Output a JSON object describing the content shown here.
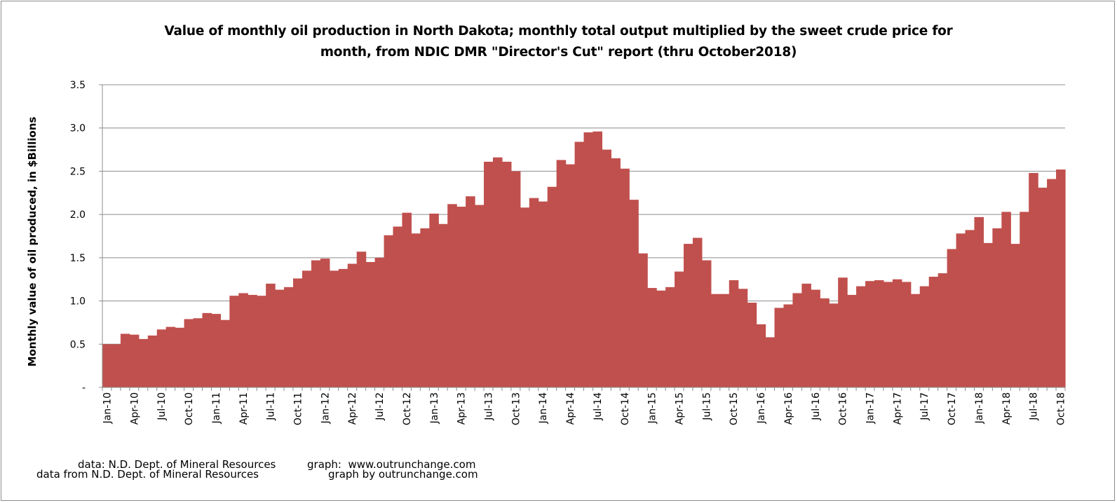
{
  "chart_data": {
    "type": "bar",
    "title_lines": [
      "Value of monthly oil production in North Dakota; monthly total output multiplied by the sweet crude price for",
      "month, from NDIC DMR \"Director's Cut\" report  (thru October2018)"
    ],
    "xlabel": "",
    "ylabel": "Monthly value of oil produced, in $Billions",
    "ylim": [
      0,
      3.5
    ],
    "yticks": [
      "-",
      "0.5",
      "1.0",
      "1.5",
      "2.0",
      "2.5",
      "3.0",
      "3.5"
    ],
    "grid": true,
    "bar_color": "#c0504d",
    "x_tick_labels": [
      "Jan-10",
      "Apr-10",
      "Jul-10",
      "Oct-10",
      "Jan-11",
      "Apr-11",
      "Jul-11",
      "Oct-11",
      "Jan-12",
      "Apr-12",
      "Jul-12",
      "Oct-12",
      "Jan-13",
      "Apr-13",
      "Jul-13",
      "Oct-13",
      "Jan-14",
      "Apr-14",
      "Jul-14",
      "Oct-14",
      "Jan-15",
      "Apr-15",
      "Jul-15",
      "Oct-15",
      "Jan-16",
      "Apr-16",
      "Jul-16",
      "Oct-16",
      "Jan-17",
      "Apr-17",
      "Jul-17",
      "Oct-17",
      "Jan-18",
      "Apr-18",
      "Jul-18",
      "Oct-18"
    ],
    "categories": [
      "Jan-10",
      "Feb-10",
      "Mar-10",
      "Apr-10",
      "May-10",
      "Jun-10",
      "Jul-10",
      "Aug-10",
      "Sep-10",
      "Oct-10",
      "Nov-10",
      "Dec-10",
      "Jan-11",
      "Feb-11",
      "Mar-11",
      "Apr-11",
      "May-11",
      "Jun-11",
      "Jul-11",
      "Aug-11",
      "Sep-11",
      "Oct-11",
      "Nov-11",
      "Dec-11",
      "Jan-12",
      "Feb-12",
      "Mar-12",
      "Apr-12",
      "May-12",
      "Jun-12",
      "Jul-12",
      "Aug-12",
      "Sep-12",
      "Oct-12",
      "Nov-12",
      "Dec-12",
      "Jan-13",
      "Feb-13",
      "Mar-13",
      "Apr-13",
      "May-13",
      "Jun-13",
      "Jul-13",
      "Aug-13",
      "Sep-13",
      "Oct-13",
      "Nov-13",
      "Dec-13",
      "Jan-14",
      "Feb-14",
      "Mar-14",
      "Apr-14",
      "May-14",
      "Jun-14",
      "Jul-14",
      "Aug-14",
      "Sep-14",
      "Oct-14",
      "Nov-14",
      "Dec-14",
      "Jan-15",
      "Feb-15",
      "Mar-15",
      "Apr-15",
      "May-15",
      "Jun-15",
      "Jul-15",
      "Aug-15",
      "Sep-15",
      "Oct-15",
      "Nov-15",
      "Dec-15",
      "Jan-16",
      "Feb-16",
      "Mar-16",
      "Apr-16",
      "May-16",
      "Jun-16",
      "Jul-16",
      "Aug-16",
      "Sep-16",
      "Oct-16",
      "Nov-16",
      "Dec-16",
      "Jan-17",
      "Feb-17",
      "Mar-17",
      "Apr-17",
      "May-17",
      "Jun-17",
      "Jul-17",
      "Aug-17",
      "Sep-17",
      "Oct-17",
      "Nov-17",
      "Dec-17",
      "Jan-18",
      "Feb-18",
      "Mar-18",
      "Apr-18",
      "May-18",
      "Jun-18",
      "Jul-18",
      "Aug-18",
      "Sep-18",
      "Oct-18"
    ],
    "values": [
      0.5,
      0.5,
      0.62,
      0.61,
      0.56,
      0.6,
      0.67,
      0.7,
      0.69,
      0.79,
      0.8,
      0.86,
      0.85,
      0.78,
      1.06,
      1.09,
      1.07,
      1.06,
      1.2,
      1.13,
      1.16,
      1.26,
      1.35,
      1.47,
      1.49,
      1.35,
      1.37,
      1.43,
      1.57,
      1.45,
      1.5,
      1.76,
      1.86,
      2.02,
      1.78,
      1.84,
      2.01,
      1.89,
      2.12,
      2.09,
      2.21,
      2.11,
      2.61,
      2.66,
      2.61,
      2.5,
      2.08,
      2.19,
      2.15,
      2.32,
      2.63,
      2.58,
      2.84,
      2.95,
      2.96,
      2.75,
      2.65,
      2.53,
      2.17,
      1.55,
      1.15,
      1.12,
      1.16,
      1.34,
      1.66,
      1.73,
      1.47,
      1.08,
      1.08,
      1.24,
      1.14,
      0.98,
      0.73,
      0.58,
      0.92,
      0.96,
      1.09,
      1.2,
      1.13,
      1.03,
      0.97,
      1.27,
      1.07,
      1.17,
      1.23,
      1.24,
      1.22,
      1.25,
      1.22,
      1.08,
      1.17,
      1.28,
      1.32,
      1.6,
      1.78,
      1.82,
      1.97,
      1.67,
      1.84,
      2.03,
      1.66,
      2.03,
      2.48,
      2.31,
      2.41,
      2.52
    ]
  },
  "footer": {
    "data_credit_1": "data: N.D. Dept. of Mineral Resources",
    "graph_credit_1": "graph:  www.outrunchange.com",
    "data_credit_2": "data from N.D. Dept. of Mineral Resources",
    "graph_credit_2": "graph by outrunchange.com"
  }
}
